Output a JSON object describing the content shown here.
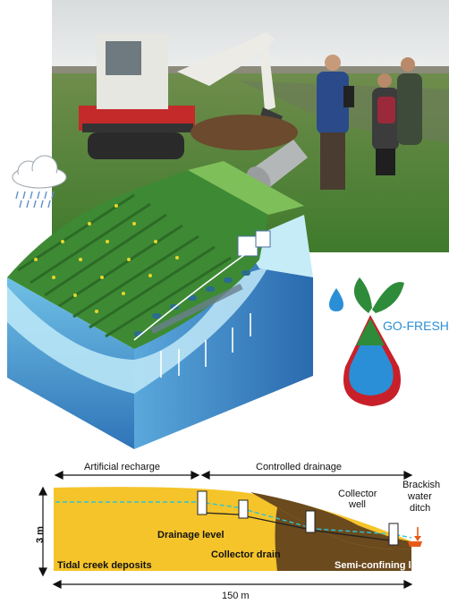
{
  "logo": {
    "text": "GO-FRESH"
  },
  "cross_section": {
    "artificial_recharge": "Artificial recharge",
    "controlled_drainage": "Controlled drainage",
    "collector_well": [
      "Collector",
      "well"
    ],
    "brackish_water_ditch": [
      "Brackish",
      "water",
      "ditch"
    ],
    "height_label": "3 m",
    "drainage_level": "Drainage level",
    "collector_drain": "Collector drain",
    "tidal_creek_deposits": "Tidal creek deposits",
    "semi_confining_layer": "Semi-confining layer",
    "width_label": "150 m"
  },
  "colors": {
    "sand": "#f5c42a",
    "clay": "#6b4a1e",
    "water_level": "#2ec4d6",
    "field_green": "#3e8a34",
    "logo_green": "#2e8b3a",
    "logo_blue": "#2a8fd6",
    "logo_red": "#c8202a"
  },
  "icons": [
    "rain-cloud-icon",
    "water-drop-icon",
    "leaf-sprout-icon"
  ]
}
